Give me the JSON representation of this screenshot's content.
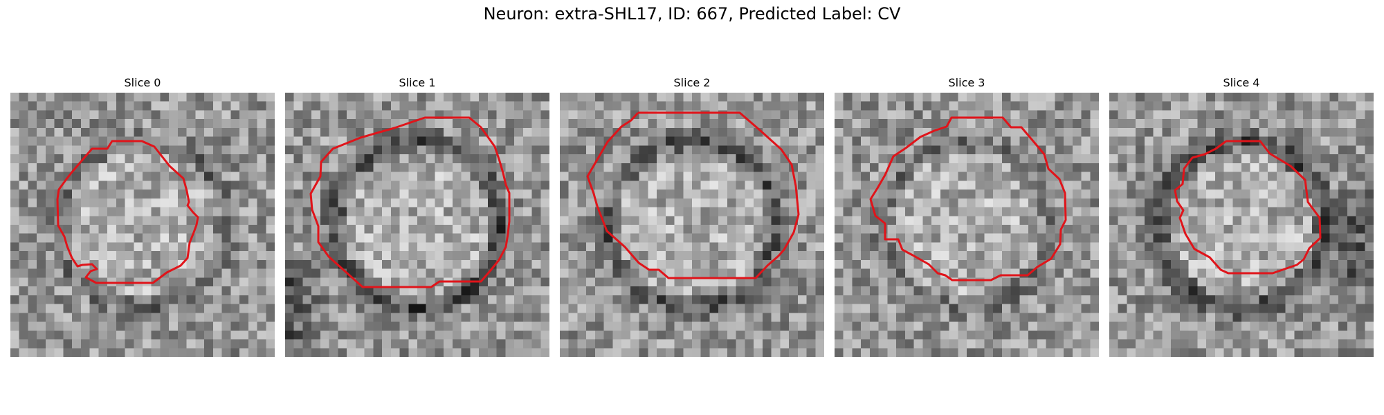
{
  "suptitle": "Neuron: extra-SHL17, ID: 667, Predicted Label: CV",
  "contour_color": "#e0141a",
  "panels": [
    {
      "title": "Slice 0",
      "ring_darkness": 0.35,
      "dark_corner": "none"
    },
    {
      "title": "Slice 1",
      "ring_darkness": 0.7,
      "dark_corner": "bottom-left"
    },
    {
      "title": "Slice 2",
      "ring_darkness": 0.55,
      "dark_corner": "none"
    },
    {
      "title": "Slice 3",
      "ring_darkness": 0.3,
      "dark_corner": "none"
    },
    {
      "title": "Slice 4",
      "ring_darkness": 0.7,
      "dark_corner": "right"
    }
  ]
}
